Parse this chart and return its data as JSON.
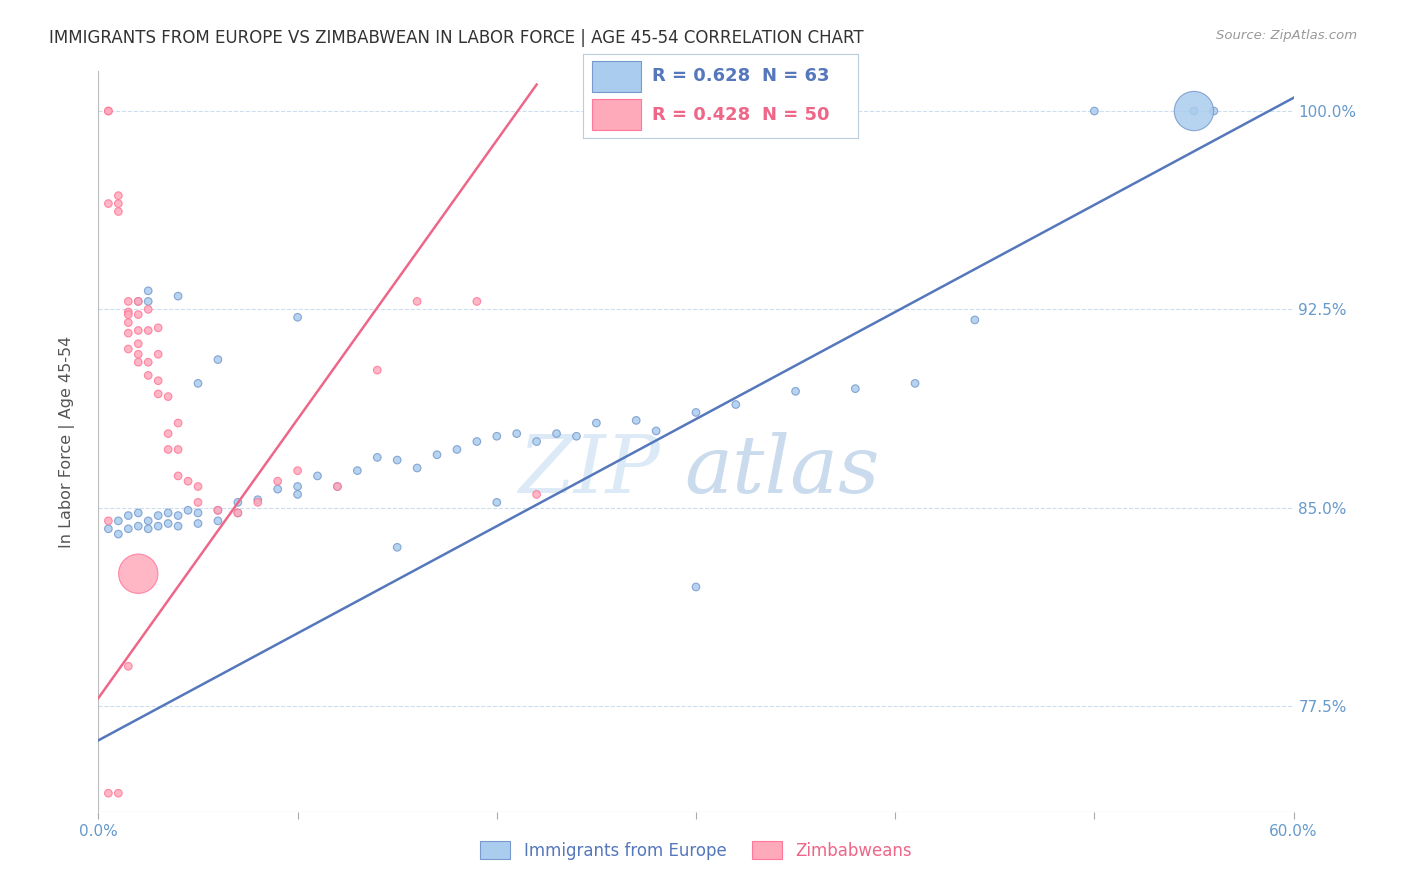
{
  "title": "IMMIGRANTS FROM EUROPE VS ZIMBABWEAN IN LABOR FORCE | AGE 45-54 CORRELATION CHART",
  "source": "Source: ZipAtlas.com",
  "ylabel": "In Labor Force | Age 45-54",
  "watermark": "ZIPatlas",
  "xlim": [
    0.0,
    0.6
  ],
  "ylim": [
    0.735,
    1.015
  ],
  "xticks": [
    0.0,
    0.1,
    0.2,
    0.3,
    0.4,
    0.5,
    0.6
  ],
  "xticklabels": [
    "0.0%",
    "",
    "",
    "",
    "",
    "",
    "60.0%"
  ],
  "yticks": [
    0.775,
    0.85,
    0.925,
    1.0
  ],
  "yticklabels": [
    "77.5%",
    "85.0%",
    "92.5%",
    "100.0%"
  ],
  "legend_blue_r": "R = 0.628",
  "legend_blue_n": "N = 63",
  "legend_pink_r": "R = 0.428",
  "legend_pink_n": "N = 50",
  "blue_color": "#AACCEE",
  "pink_color": "#FFAABB",
  "blue_edge_color": "#7799CC",
  "pink_edge_color": "#FF7799",
  "blue_line_color": "#5577BB",
  "pink_line_color": "#EE6688",
  "grid_color": "#CCDDEE",
  "axis_tick_color": "#6699CC",
  "title_color": "#333333",
  "blue_trend_x": [
    0.0,
    0.6
  ],
  "blue_trend_y": [
    0.762,
    1.005
  ],
  "pink_trend_x": [
    0.0,
    0.22
  ],
  "pink_trend_y": [
    0.778,
    1.01
  ],
  "blue_scatter_x": [
    0.005,
    0.01,
    0.01,
    0.015,
    0.015,
    0.02,
    0.02,
    0.025,
    0.025,
    0.03,
    0.03,
    0.035,
    0.035,
    0.04,
    0.04,
    0.045,
    0.05,
    0.05,
    0.06,
    0.06,
    0.07,
    0.07,
    0.08,
    0.09,
    0.1,
    0.1,
    0.11,
    0.12,
    0.13,
    0.14,
    0.15,
    0.16,
    0.17,
    0.18,
    0.19,
    0.2,
    0.21,
    0.22,
    0.23,
    0.24,
    0.25,
    0.27,
    0.28,
    0.3,
    0.32,
    0.35,
    0.38,
    0.41,
    0.44,
    0.5,
    0.55,
    0.56,
    0.02,
    0.025,
    0.025,
    0.04,
    0.05,
    0.06,
    0.1,
    0.15,
    0.2,
    0.3,
    0.55
  ],
  "blue_scatter_y": [
    0.842,
    0.845,
    0.84,
    0.847,
    0.842,
    0.848,
    0.843,
    0.845,
    0.842,
    0.847,
    0.843,
    0.848,
    0.844,
    0.847,
    0.843,
    0.849,
    0.848,
    0.844,
    0.849,
    0.845,
    0.852,
    0.848,
    0.853,
    0.857,
    0.858,
    0.855,
    0.862,
    0.858,
    0.864,
    0.869,
    0.868,
    0.865,
    0.87,
    0.872,
    0.875,
    0.877,
    0.878,
    0.875,
    0.878,
    0.877,
    0.882,
    0.883,
    0.879,
    0.886,
    0.889,
    0.894,
    0.895,
    0.897,
    0.921,
    1.0,
    1.0,
    1.0,
    0.928,
    0.932,
    0.928,
    0.93,
    0.897,
    0.906,
    0.922,
    0.835,
    0.852,
    0.82,
    1.0
  ],
  "blue_scatter_size": [
    30,
    30,
    30,
    30,
    30,
    30,
    30,
    30,
    30,
    30,
    30,
    30,
    30,
    30,
    30,
    30,
    30,
    30,
    30,
    30,
    30,
    30,
    30,
    30,
    30,
    30,
    30,
    30,
    30,
    30,
    30,
    30,
    30,
    30,
    30,
    30,
    30,
    30,
    30,
    30,
    30,
    30,
    30,
    30,
    30,
    30,
    30,
    30,
    30,
    30,
    30,
    30,
    30,
    30,
    30,
    30,
    30,
    30,
    30,
    30,
    30,
    30,
    800
  ],
  "pink_scatter_x": [
    0.005,
    0.005,
    0.005,
    0.01,
    0.01,
    0.01,
    0.015,
    0.015,
    0.015,
    0.015,
    0.015,
    0.015,
    0.02,
    0.02,
    0.02,
    0.02,
    0.02,
    0.02,
    0.025,
    0.025,
    0.025,
    0.025,
    0.03,
    0.03,
    0.03,
    0.03,
    0.035,
    0.035,
    0.035,
    0.04,
    0.04,
    0.04,
    0.045,
    0.05,
    0.05,
    0.06,
    0.07,
    0.08,
    0.09,
    0.1,
    0.12,
    0.14,
    0.16,
    0.19,
    0.22,
    0.005,
    0.005,
    0.01,
    0.015,
    0.02
  ],
  "pink_scatter_y": [
    1.0,
    1.0,
    0.965,
    0.965,
    0.968,
    0.962,
    0.928,
    0.924,
    0.923,
    0.92,
    0.916,
    0.91,
    0.928,
    0.923,
    0.917,
    0.912,
    0.908,
    0.905,
    0.925,
    0.917,
    0.905,
    0.9,
    0.918,
    0.908,
    0.898,
    0.893,
    0.892,
    0.878,
    0.872,
    0.882,
    0.872,
    0.862,
    0.86,
    0.858,
    0.852,
    0.849,
    0.848,
    0.852,
    0.86,
    0.864,
    0.858,
    0.902,
    0.928,
    0.928,
    0.855,
    0.845,
    0.742,
    0.742,
    0.79,
    0.825
  ],
  "pink_scatter_size": [
    30,
    30,
    30,
    30,
    30,
    30,
    30,
    30,
    30,
    30,
    30,
    30,
    30,
    30,
    30,
    30,
    30,
    30,
    30,
    30,
    30,
    30,
    30,
    30,
    30,
    30,
    30,
    30,
    30,
    30,
    30,
    30,
    30,
    30,
    30,
    30,
    30,
    30,
    30,
    30,
    30,
    30,
    30,
    30,
    30,
    30,
    30,
    30,
    30,
    800
  ]
}
